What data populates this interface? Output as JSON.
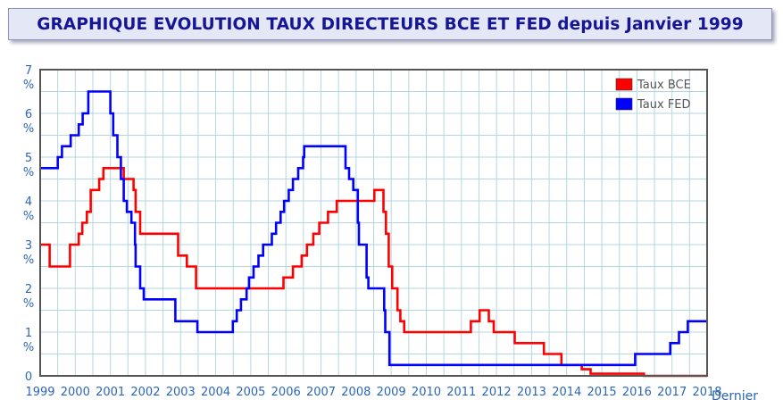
{
  "header": {
    "title": "GRAPHIQUE EVOLUTION TAUX DIRECTEURS BCE ET FED depuis Janvier 1999"
  },
  "footer_label": "Dernier",
  "colors": {
    "bce": "#ff0000",
    "fed": "#0000ff",
    "grid": "#b4d6e2",
    "axis": "#555555",
    "tick_text": "#2a66b6",
    "title": "#151596"
  },
  "chart_data": {
    "type": "line",
    "title": "GRAPHIQUE EVOLUTION TAUX DIRECTEURS BCE ET FED depuis Janvier 1999",
    "xlabel": "",
    "ylabel": "",
    "xlim": [
      1999,
      2018
    ],
    "ylim": [
      0,
      7
    ],
    "grid": true,
    "legend_position": "top-right",
    "y_ticks": [
      {
        "value": 0,
        "label": "0"
      },
      {
        "value": 1,
        "label": "1 %"
      },
      {
        "value": 2,
        "label": "2 %"
      },
      {
        "value": 3,
        "label": "3 %"
      },
      {
        "value": 4,
        "label": "4 %"
      },
      {
        "value": 5,
        "label": "5 %"
      },
      {
        "value": 6,
        "label": "6 %"
      },
      {
        "value": 7,
        "label": "7 %"
      }
    ],
    "x_ticks": [
      {
        "value": 1999,
        "label": "1999"
      },
      {
        "value": 2000,
        "label": "2000"
      },
      {
        "value": 2001,
        "label": "2001"
      },
      {
        "value": 2002,
        "label": "2002"
      },
      {
        "value": 2003,
        "label": "2003"
      },
      {
        "value": 2004,
        "label": "2004"
      },
      {
        "value": 2005,
        "label": "2005"
      },
      {
        "value": 2006,
        "label": "2006"
      },
      {
        "value": 2007,
        "label": "2007"
      },
      {
        "value": 2008,
        "label": "2008"
      },
      {
        "value": 2009,
        "label": "2009"
      },
      {
        "value": 2010,
        "label": "2010"
      },
      {
        "value": 2011,
        "label": "2011"
      },
      {
        "value": 2012,
        "label": "2012"
      },
      {
        "value": 2013,
        "label": "2013"
      },
      {
        "value": 2014,
        "label": "2014"
      },
      {
        "value": 2015,
        "label": "2015"
      },
      {
        "value": 2016,
        "label": "2016"
      },
      {
        "value": 2017,
        "label": "2017"
      },
      {
        "value": 2018,
        "label": "2018"
      }
    ],
    "series": [
      {
        "name": "Taux BCE",
        "color": "#ff0000",
        "steps": [
          [
            1999.0,
            3.0
          ],
          [
            1999.27,
            2.5
          ],
          [
            1999.85,
            3.0
          ],
          [
            2000.1,
            3.25
          ],
          [
            2000.2,
            3.5
          ],
          [
            2000.33,
            3.75
          ],
          [
            2000.44,
            4.25
          ],
          [
            2000.68,
            4.5
          ],
          [
            2000.8,
            4.75
          ],
          [
            2001.38,
            4.5
          ],
          [
            2001.66,
            4.25
          ],
          [
            2001.72,
            3.75
          ],
          [
            2001.85,
            3.25
          ],
          [
            2002.93,
            2.75
          ],
          [
            2003.18,
            2.5
          ],
          [
            2003.44,
            2.0
          ],
          [
            2005.93,
            2.25
          ],
          [
            2006.2,
            2.5
          ],
          [
            2006.45,
            2.75
          ],
          [
            2006.6,
            3.0
          ],
          [
            2006.78,
            3.25
          ],
          [
            2006.95,
            3.5
          ],
          [
            2007.2,
            3.75
          ],
          [
            2007.45,
            4.0
          ],
          [
            2008.52,
            4.25
          ],
          [
            2008.78,
            3.75
          ],
          [
            2008.85,
            3.25
          ],
          [
            2008.93,
            2.5
          ],
          [
            2009.03,
            2.0
          ],
          [
            2009.18,
            1.5
          ],
          [
            2009.26,
            1.25
          ],
          [
            2009.37,
            1.0
          ],
          [
            2011.27,
            1.25
          ],
          [
            2011.52,
            1.5
          ],
          [
            2011.78,
            1.25
          ],
          [
            2011.92,
            1.0
          ],
          [
            2012.52,
            0.75
          ],
          [
            2013.35,
            0.5
          ],
          [
            2013.85,
            0.25
          ],
          [
            2014.43,
            0.15
          ],
          [
            2014.68,
            0.05
          ],
          [
            2016.2,
            0.0
          ],
          [
            2018.0,
            0.0
          ]
        ]
      },
      {
        "name": "Taux FED",
        "color": "#0000ff",
        "steps": [
          [
            1999.0,
            4.75
          ],
          [
            1999.5,
            5.0
          ],
          [
            1999.62,
            5.25
          ],
          [
            1999.87,
            5.5
          ],
          [
            2000.1,
            5.75
          ],
          [
            2000.21,
            6.0
          ],
          [
            2000.37,
            6.5
          ],
          [
            2001.0,
            6.0
          ],
          [
            2001.08,
            5.5
          ],
          [
            2001.2,
            5.0
          ],
          [
            2001.3,
            4.5
          ],
          [
            2001.38,
            4.0
          ],
          [
            2001.47,
            3.75
          ],
          [
            2001.6,
            3.5
          ],
          [
            2001.7,
            3.0
          ],
          [
            2001.72,
            2.5
          ],
          [
            2001.85,
            2.0
          ],
          [
            2001.95,
            1.75
          ],
          [
            2002.85,
            1.25
          ],
          [
            2003.48,
            1.0
          ],
          [
            2004.49,
            1.25
          ],
          [
            2004.6,
            1.5
          ],
          [
            2004.72,
            1.75
          ],
          [
            2004.88,
            2.0
          ],
          [
            2004.95,
            2.25
          ],
          [
            2005.08,
            2.5
          ],
          [
            2005.22,
            2.75
          ],
          [
            2005.35,
            3.0
          ],
          [
            2005.6,
            3.25
          ],
          [
            2005.72,
            3.5
          ],
          [
            2005.85,
            3.75
          ],
          [
            2005.95,
            4.0
          ],
          [
            2006.08,
            4.25
          ],
          [
            2006.2,
            4.5
          ],
          [
            2006.35,
            4.75
          ],
          [
            2006.49,
            5.0
          ],
          [
            2006.52,
            5.25
          ],
          [
            2007.7,
            4.75
          ],
          [
            2007.8,
            4.5
          ],
          [
            2007.92,
            4.25
          ],
          [
            2008.05,
            3.5
          ],
          [
            2008.08,
            3.0
          ],
          [
            2008.3,
            2.25
          ],
          [
            2008.35,
            2.0
          ],
          [
            2008.8,
            1.5
          ],
          [
            2008.83,
            1.0
          ],
          [
            2008.95,
            0.25
          ],
          [
            2015.95,
            0.5
          ],
          [
            2016.95,
            0.75
          ],
          [
            2017.2,
            1.0
          ],
          [
            2017.45,
            1.25
          ],
          [
            2018.0,
            1.25
          ]
        ]
      }
    ]
  }
}
